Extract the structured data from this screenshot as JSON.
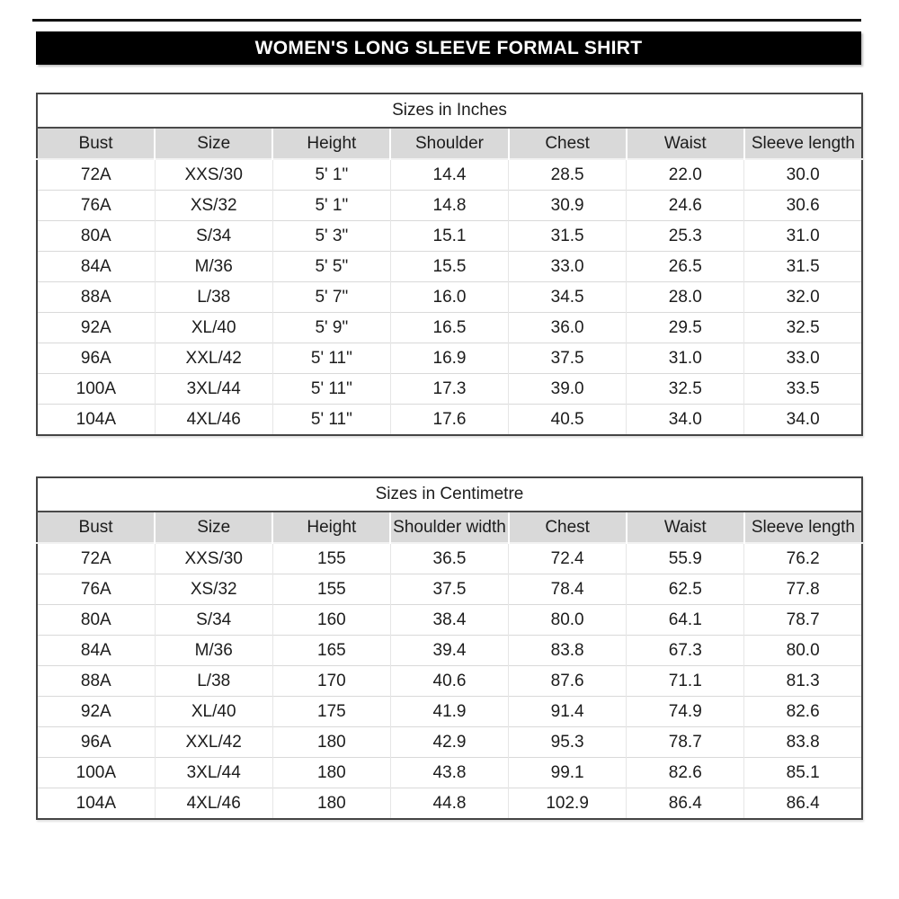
{
  "header": {
    "title": "WOMEN'S LONG SLEEVE FORMAL SHIRT"
  },
  "colors": {
    "banner_bg": "#000000",
    "banner_text": "#ffffff",
    "table_border": "#454545",
    "header_row_bg": "#d9d9d9",
    "row_separator": "#d9d9d9",
    "text": "#1c1c1c",
    "page_bg": "#ffffff"
  },
  "tables": [
    {
      "title": "Sizes in Inches",
      "columns": [
        "Bust",
        "Size",
        "Height",
        "Shoulder",
        "Chest",
        "Waist",
        "Sleeve length"
      ],
      "rows": [
        [
          "72A",
          "XXS/30",
          "5' 1\"",
          "14.4",
          "28.5",
          "22.0",
          "30.0"
        ],
        [
          "76A",
          "XS/32",
          "5' 1\"",
          "14.8",
          "30.9",
          "24.6",
          "30.6"
        ],
        [
          "80A",
          "S/34",
          "5' 3\"",
          "15.1",
          "31.5",
          "25.3",
          "31.0"
        ],
        [
          "84A",
          "M/36",
          "5' 5\"",
          "15.5",
          "33.0",
          "26.5",
          "31.5"
        ],
        [
          "88A",
          "L/38",
          "5' 7\"",
          "16.0",
          "34.5",
          "28.0",
          "32.0"
        ],
        [
          "92A",
          "XL/40",
          "5' 9\"",
          "16.5",
          "36.0",
          "29.5",
          "32.5"
        ],
        [
          "96A",
          "XXL/42",
          "5' 11\"",
          "16.9",
          "37.5",
          "31.0",
          "33.0"
        ],
        [
          "100A",
          "3XL/44",
          "5' 11\"",
          "17.3",
          "39.0",
          "32.5",
          "33.5"
        ],
        [
          "104A",
          "4XL/46",
          "5' 11\"",
          "17.6",
          "40.5",
          "34.0",
          "34.0"
        ]
      ]
    },
    {
      "title": "Sizes in Centimetre",
      "columns": [
        "Bust",
        "Size",
        "Height",
        "Shoulder width",
        "Chest",
        "Waist",
        "Sleeve length"
      ],
      "rows": [
        [
          "72A",
          "XXS/30",
          "155",
          "36.5",
          "72.4",
          "55.9",
          "76.2"
        ],
        [
          "76A",
          "XS/32",
          "155",
          "37.5",
          "78.4",
          "62.5",
          "77.8"
        ],
        [
          "80A",
          "S/34",
          "160",
          "38.4",
          "80.0",
          "64.1",
          "78.7"
        ],
        [
          "84A",
          "M/36",
          "165",
          "39.4",
          "83.8",
          "67.3",
          "80.0"
        ],
        [
          "88A",
          "L/38",
          "170",
          "40.6",
          "87.6",
          "71.1",
          "81.3"
        ],
        [
          "92A",
          "XL/40",
          "175",
          "41.9",
          "91.4",
          "74.9",
          "82.6"
        ],
        [
          "96A",
          "XXL/42",
          "180",
          "42.9",
          "95.3",
          "78.7",
          "83.8"
        ],
        [
          "100A",
          "3XL/44",
          "180",
          "43.8",
          "99.1",
          "82.6",
          "85.1"
        ],
        [
          "104A",
          "4XL/46",
          "180",
          "44.8",
          "102.9",
          "86.4",
          "86.4"
        ]
      ]
    }
  ]
}
